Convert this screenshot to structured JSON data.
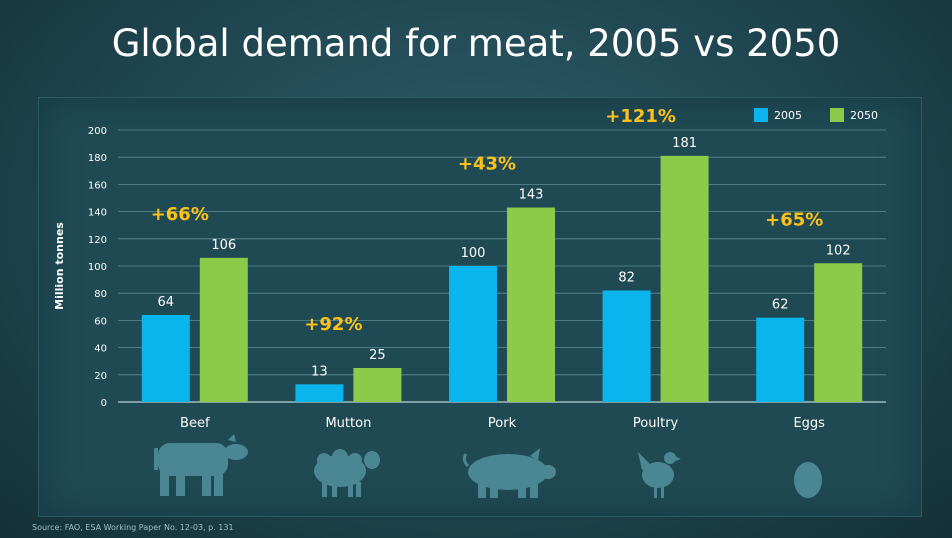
{
  "title": "Global demand for meat, 2005 vs 2050",
  "source": "Source: FAO, ESA Working Paper No. 12-03, p. 131",
  "colors": {
    "series_2005": "#0ab4ec",
    "series_2050": "#8ccb4a",
    "growth_label": "#ffc21a"
  },
  "chart_data": {
    "type": "bar",
    "categories": [
      "Beef",
      "Mutton",
      "Pork",
      "Poultry",
      "Eggs"
    ],
    "series": [
      {
        "name": "2005",
        "values": [
          64,
          13,
          100,
          82,
          62
        ]
      },
      {
        "name": "2050",
        "values": [
          106,
          25,
          143,
          181,
          102
        ]
      }
    ],
    "growth_labels": [
      "+66%",
      "+92%",
      "+43%",
      "+121%",
      "+65%"
    ],
    "xlabel": "",
    "ylabel": "Million tonnes",
    "ylim": [
      0,
      200
    ],
    "yticks": [
      0,
      20,
      40,
      60,
      80,
      100,
      120,
      140,
      160,
      180,
      200
    ],
    "grid": true,
    "legend_position": "top-right"
  },
  "icons": [
    "cow-icon",
    "sheep-icon",
    "pig-icon",
    "chicken-icon",
    "egg-icon"
  ]
}
